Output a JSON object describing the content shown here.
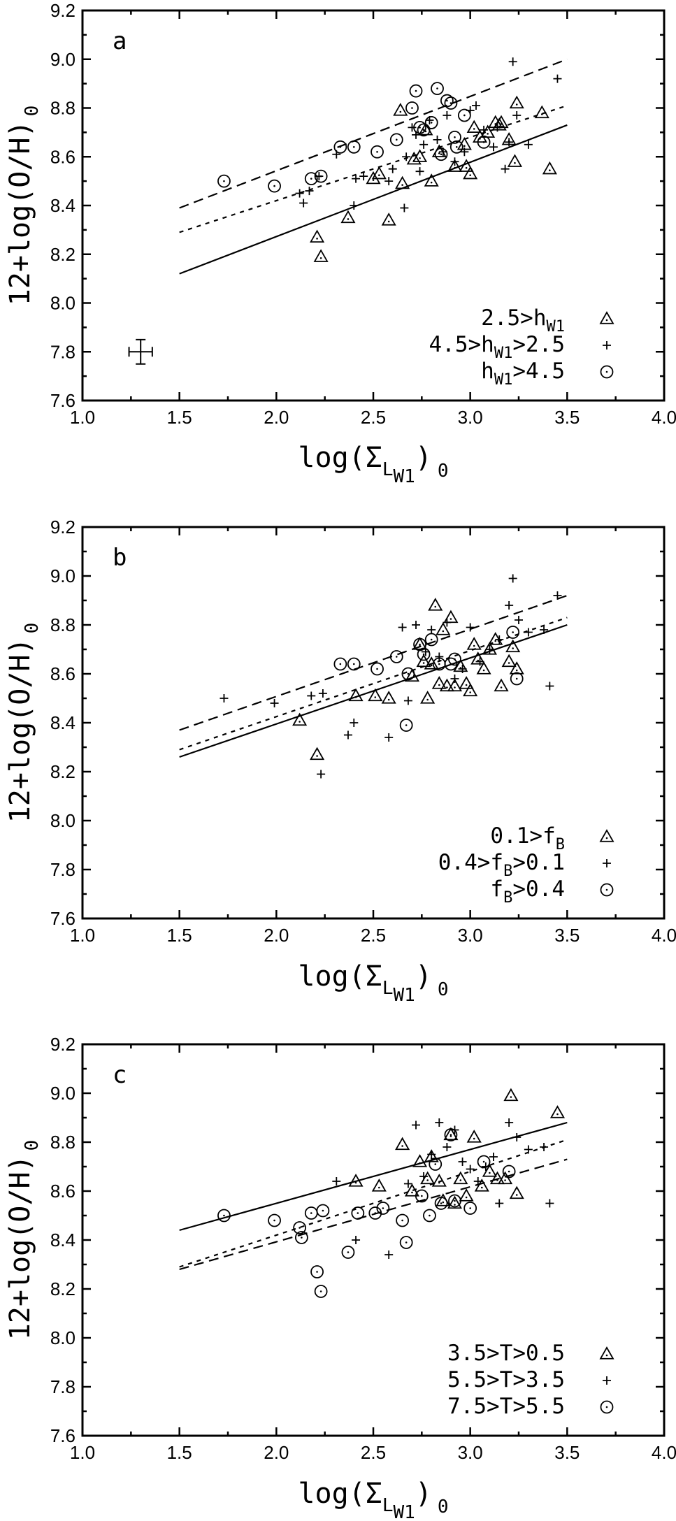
{
  "chart_data": [
    {
      "type": "scatter",
      "panel_label": "a",
      "xlabel": "log(Σ_LW1)_0",
      "ylabel": "12+log(O/H)_0",
      "xlim": [
        1.0,
        4.0
      ],
      "ylim": [
        7.6,
        9.2
      ],
      "xticks": [
        "1.0",
        "1.5",
        "2.0",
        "2.5",
        "3.0",
        "3.5",
        "4.0"
      ],
      "yticks": [
        "7.6",
        "7.8",
        "8.0",
        "8.2",
        "8.4",
        "8.6",
        "8.8",
        "9.0",
        "9.2"
      ],
      "grid": false,
      "legend_position": "bottom-right",
      "error_bar": {
        "x": 1.3,
        "y": 7.8,
        "xerr": 0.06,
        "yerr": 0.05
      },
      "fit_lines": [
        {
          "style": "solid",
          "x": [
            1.5,
            3.5
          ],
          "y": [
            8.12,
            8.73
          ]
        },
        {
          "style": "dotted",
          "x": [
            1.5,
            3.5
          ],
          "y": [
            8.29,
            8.81
          ]
        },
        {
          "style": "dashed",
          "x": [
            1.5,
            3.5
          ],
          "y": [
            8.39,
            9.0
          ]
        }
      ],
      "series": [
        {
          "name": "2.5>h_W1",
          "marker": "triangle",
          "legend": {
            "main": "2.5>h",
            "sub": "W1",
            "rest": ""
          },
          "x": [
            2.21,
            2.23,
            2.37,
            2.5,
            2.53,
            2.58,
            2.64,
            2.65,
            2.71,
            2.74,
            2.77,
            2.8,
            2.84,
            2.92,
            2.97,
            2.98,
            3.0,
            3.02,
            3.05,
            3.09,
            3.13,
            3.15,
            3.16,
            3.2,
            3.23,
            3.24,
            3.37,
            3.41
          ],
          "y": [
            8.27,
            8.19,
            8.35,
            8.51,
            8.53,
            8.34,
            8.79,
            8.49,
            8.59,
            8.6,
            8.71,
            8.5,
            8.62,
            8.56,
            8.65,
            8.56,
            8.53,
            8.72,
            8.68,
            8.7,
            8.74,
            8.73,
            8.74,
            8.67,
            8.58,
            8.82,
            8.78,
            8.55
          ]
        },
        {
          "name": "4.5>h_W1>2.5",
          "marker": "plus",
          "legend": {
            "main": "4.5>h",
            "sub": "W1",
            "rest": ">2.5"
          },
          "x": [
            2.12,
            2.14,
            2.17,
            2.22,
            2.31,
            2.4,
            2.41,
            2.45,
            2.58,
            2.6,
            2.66,
            2.67,
            2.7,
            2.72,
            2.74,
            2.76,
            2.79,
            2.83,
            2.86,
            2.88,
            2.92,
            2.97,
            3.0,
            3.03,
            3.07,
            3.12,
            3.14,
            3.18,
            3.2,
            3.22,
            3.24,
            3.3,
            3.45
          ],
          "y": [
            8.45,
            8.41,
            8.46,
            8.52,
            8.61,
            8.4,
            8.51,
            8.52,
            8.5,
            8.55,
            8.39,
            8.6,
            8.72,
            8.69,
            8.54,
            8.65,
            8.75,
            8.67,
            8.62,
            8.77,
            8.58,
            8.62,
            8.79,
            8.81,
            8.71,
            8.64,
            8.72,
            8.55,
            8.66,
            8.99,
            8.77,
            8.65,
            8.92
          ]
        },
        {
          "name": "h_W1>4.5",
          "marker": "circle",
          "legend": {
            "main": "h",
            "sub": "W1",
            "rest": ">4.5"
          },
          "x": [
            1.73,
            1.99,
            2.18,
            2.23,
            2.33,
            2.4,
            2.52,
            2.62,
            2.7,
            2.72,
            2.74,
            2.76,
            2.8,
            2.83,
            2.85,
            2.88,
            2.9,
            2.92,
            2.93,
            2.97,
            3.07
          ],
          "y": [
            8.5,
            8.48,
            8.51,
            8.52,
            8.64,
            8.64,
            8.62,
            8.67,
            8.8,
            8.87,
            8.72,
            8.71,
            8.74,
            8.88,
            8.61,
            8.83,
            8.82,
            8.68,
            8.64,
            8.77,
            8.66
          ]
        }
      ]
    },
    {
      "type": "scatter",
      "panel_label": "b",
      "xlabel": "log(Σ_LW1)_0",
      "ylabel": "12+log(O/H)_0",
      "xlim": [
        1.0,
        4.0
      ],
      "ylim": [
        7.6,
        9.2
      ],
      "xticks": [
        "1.0",
        "1.5",
        "2.0",
        "2.5",
        "3.0",
        "3.5",
        "4.0"
      ],
      "yticks": [
        "7.6",
        "7.8",
        "8.0",
        "8.2",
        "8.4",
        "8.6",
        "8.8",
        "9.0",
        "9.2"
      ],
      "grid": false,
      "legend_position": "bottom-right",
      "fit_lines": [
        {
          "style": "solid",
          "x": [
            1.5,
            3.5
          ],
          "y": [
            8.26,
            8.8
          ]
        },
        {
          "style": "dotted",
          "x": [
            1.5,
            3.5
          ],
          "y": [
            8.29,
            8.83
          ]
        },
        {
          "style": "dashed",
          "x": [
            1.5,
            3.5
          ],
          "y": [
            8.37,
            8.92
          ]
        }
      ],
      "series": [
        {
          "name": "0.1>f_B",
          "marker": "triangle",
          "legend": {
            "main": "0.1>f",
            "sub": "B",
            "rest": ""
          },
          "x": [
            2.12,
            2.21,
            2.41,
            2.51,
            2.58,
            2.7,
            2.74,
            2.76,
            2.78,
            2.8,
            2.82,
            2.84,
            2.86,
            2.88,
            2.9,
            2.92,
            2.95,
            2.98,
            3.0,
            3.02,
            3.04,
            3.07,
            3.1,
            3.13,
            3.16,
            3.2,
            3.22,
            3.24
          ],
          "y": [
            8.41,
            8.27,
            8.51,
            8.51,
            8.5,
            8.59,
            8.72,
            8.65,
            8.5,
            8.64,
            8.88,
            8.56,
            8.78,
            8.55,
            8.83,
            8.55,
            8.63,
            8.56,
            8.53,
            8.72,
            8.66,
            8.62,
            8.7,
            8.74,
            8.55,
            8.65,
            8.71,
            8.62
          ]
        },
        {
          "name": "0.4>f_B>0.1",
          "marker": "plus",
          "legend": {
            "main": "0.4>f",
            "sub": "B",
            "rest": ">0.1"
          },
          "x": [
            1.73,
            1.99,
            2.18,
            2.23,
            2.24,
            2.37,
            2.4,
            2.58,
            2.65,
            2.68,
            2.72,
            2.77,
            2.8,
            2.84,
            2.88,
            2.92,
            2.96,
            3.0,
            3.05,
            3.1,
            3.15,
            3.2,
            3.22,
            3.25,
            3.3,
            3.38,
            3.41,
            3.45
          ],
          "y": [
            8.5,
            8.48,
            8.51,
            8.19,
            8.52,
            8.35,
            8.4,
            8.34,
            8.79,
            8.49,
            8.8,
            8.69,
            8.78,
            8.67,
            8.81,
            8.58,
            8.62,
            8.79,
            8.65,
            8.7,
            8.74,
            8.88,
            8.99,
            8.82,
            8.77,
            8.78,
            8.55,
            8.92
          ]
        },
        {
          "name": "f_B>0.4",
          "marker": "circle",
          "legend": {
            "main": "f",
            "sub": "B",
            "rest": ">0.4"
          },
          "x": [
            2.33,
            2.4,
            2.52,
            2.62,
            2.67,
            2.68,
            2.74,
            2.76,
            2.8,
            2.84,
            2.9,
            2.92,
            3.22,
            3.24
          ],
          "y": [
            8.64,
            8.64,
            8.62,
            8.67,
            8.39,
            8.6,
            8.72,
            8.68,
            8.74,
            8.64,
            8.64,
            8.66,
            8.77,
            8.58
          ]
        }
      ]
    },
    {
      "type": "scatter",
      "panel_label": "c",
      "xlabel": "log(Σ_LW1)_0",
      "ylabel": "12+log(O/H)_0",
      "xlim": [
        1.0,
        4.0
      ],
      "ylim": [
        7.6,
        9.2
      ],
      "xticks": [
        "1.0",
        "1.5",
        "2.0",
        "2.5",
        "3.0",
        "3.5",
        "4.0"
      ],
      "yticks": [
        "7.6",
        "7.8",
        "8.0",
        "8.2",
        "8.4",
        "8.6",
        "8.8",
        "9.0",
        "9.2"
      ],
      "grid": false,
      "legend_position": "bottom-right",
      "fit_lines": [
        {
          "style": "solid",
          "x": [
            1.5,
            3.5
          ],
          "y": [
            8.44,
            8.88
          ]
        },
        {
          "style": "dotted",
          "x": [
            1.5,
            3.5
          ],
          "y": [
            8.29,
            8.81
          ]
        },
        {
          "style": "dashed",
          "x": [
            1.5,
            3.5
          ],
          "y": [
            8.28,
            8.73
          ]
        }
      ],
      "series": [
        {
          "name": "3.5>T>0.5",
          "marker": "triangle",
          "legend": {
            "main": "3.5>T>0.5",
            "sub": "",
            "rest": ""
          },
          "x": [
            2.41,
            2.53,
            2.65,
            2.7,
            2.74,
            2.78,
            2.8,
            2.84,
            2.86,
            2.9,
            2.92,
            2.95,
            2.98,
            3.02,
            3.06,
            3.1,
            3.14,
            3.18,
            3.21,
            3.24,
            3.45
          ],
          "y": [
            8.64,
            8.62,
            8.79,
            8.6,
            8.72,
            8.65,
            8.74,
            8.64,
            8.56,
            8.83,
            8.55,
            8.65,
            8.58,
            8.82,
            8.62,
            8.68,
            8.65,
            8.65,
            8.99,
            8.59,
            8.92
          ]
        },
        {
          "name": "5.5>T>3.5",
          "marker": "plus",
          "legend": {
            "main": "5.5>T>3.5",
            "sub": "",
            "rest": ""
          },
          "x": [
            2.31,
            2.41,
            2.58,
            2.68,
            2.72,
            2.76,
            2.8,
            2.84,
            2.88,
            2.92,
            2.96,
            3.0,
            3.04,
            3.08,
            3.12,
            3.15,
            3.2,
            3.24,
            3.3,
            3.38,
            3.41
          ],
          "y": [
            8.64,
            8.4,
            8.34,
            8.63,
            8.87,
            8.66,
            8.75,
            8.88,
            8.78,
            8.85,
            8.72,
            8.69,
            8.64,
            8.7,
            8.74,
            8.55,
            8.88,
            8.82,
            8.77,
            8.78,
            8.55
          ]
        },
        {
          "name": "7.5>T>5.5",
          "marker": "circle",
          "legend": {
            "main": "7.5>T>5.5",
            "sub": "",
            "rest": ""
          },
          "x": [
            1.73,
            1.99,
            2.12,
            2.13,
            2.18,
            2.21,
            2.23,
            2.24,
            2.37,
            2.42,
            2.51,
            2.55,
            2.65,
            2.67,
            2.75,
            2.79,
            2.82,
            2.85,
            2.9,
            2.92,
            3.0,
            3.07,
            3.2
          ],
          "y": [
            8.5,
            8.48,
            8.45,
            8.41,
            8.51,
            8.27,
            8.19,
            8.52,
            8.35,
            8.51,
            8.51,
            8.53,
            8.48,
            8.39,
            8.58,
            8.5,
            8.71,
            8.55,
            8.83,
            8.56,
            8.53,
            8.72,
            8.68
          ]
        }
      ]
    }
  ]
}
